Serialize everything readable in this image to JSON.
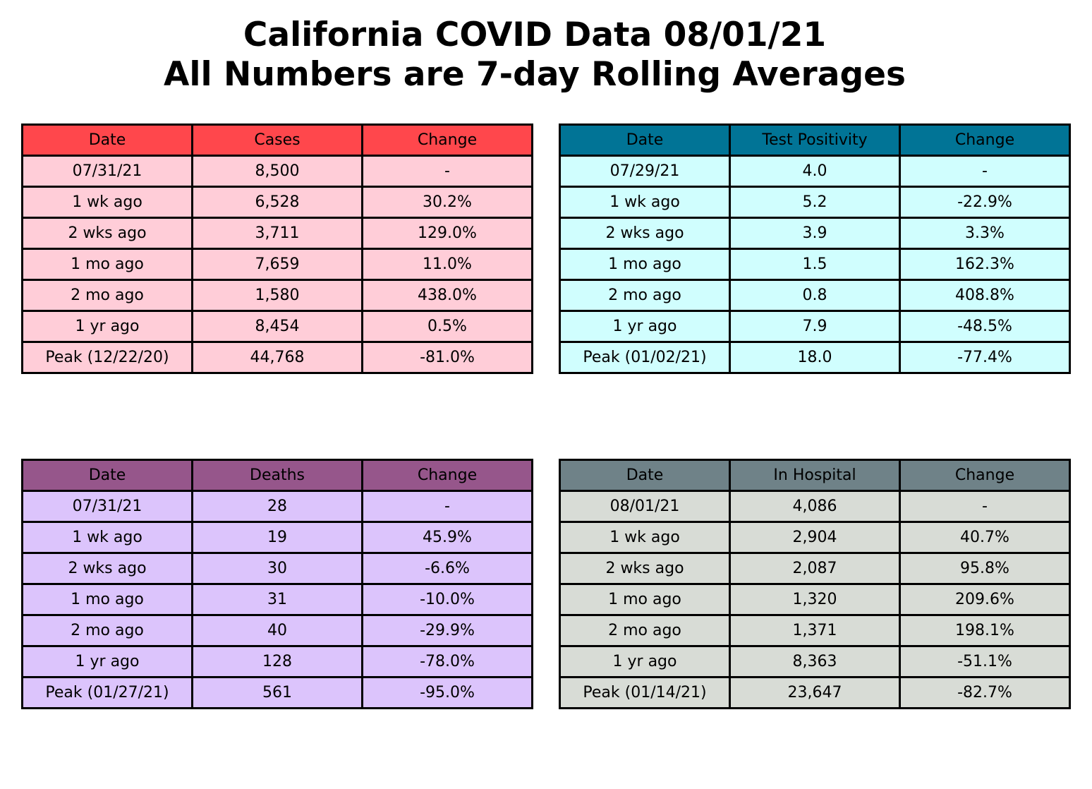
{
  "title": {
    "line1": "California COVID Data 08/01/21",
    "line2": "All Numbers are 7-day Rolling Averages"
  },
  "chart_data": [
    {
      "type": "table",
      "header_color": "#ff474c",
      "cell_color": "#ffcdd8",
      "columns": [
        "Date",
        "Cases",
        "Change"
      ],
      "rows": [
        [
          "07/31/21",
          "8,500",
          "-"
        ],
        [
          "1 wk ago",
          "6,528",
          "30.2%"
        ],
        [
          "2 wks ago",
          "3,711",
          "129.0%"
        ],
        [
          "1 mo ago",
          "7,659",
          "11.0%"
        ],
        [
          "2 mo ago",
          "1,580",
          "438.0%"
        ],
        [
          "1 yr ago",
          "8,454",
          "0.5%"
        ],
        [
          "Peak (12/22/20)",
          "44,768",
          "-81.0%"
        ]
      ]
    },
    {
      "type": "table",
      "header_color": "#017496",
      "cell_color": "#d0fefe",
      "columns": [
        "Date",
        "Test Positivity",
        "Change"
      ],
      "rows": [
        [
          "07/29/21",
          "4.0",
          "-"
        ],
        [
          "1 wk ago",
          "5.2",
          "-22.9%"
        ],
        [
          "2 wks ago",
          "3.9",
          "3.3%"
        ],
        [
          "1 mo ago",
          "1.5",
          "162.3%"
        ],
        [
          "2 mo ago",
          "0.8",
          "408.8%"
        ],
        [
          "1 yr ago",
          "7.9",
          "-48.5%"
        ],
        [
          "Peak (01/02/21)",
          "18.0",
          "-77.4%"
        ]
      ]
    },
    {
      "type": "table",
      "header_color": "#96568b",
      "cell_color": "#dcc4fc",
      "columns": [
        "Date",
        "Deaths",
        "Change"
      ],
      "rows": [
        [
          "07/31/21",
          "28",
          "-"
        ],
        [
          "1 wk ago",
          "19",
          "45.9%"
        ],
        [
          "2 wks ago",
          "30",
          "-6.6%"
        ],
        [
          "1 mo ago",
          "31",
          "-10.0%"
        ],
        [
          "2 mo ago",
          "40",
          "-29.9%"
        ],
        [
          "1 yr ago",
          "128",
          "-78.0%"
        ],
        [
          "Peak (01/27/21)",
          "561",
          "-95.0%"
        ]
      ]
    },
    {
      "type": "table",
      "header_color": "#6f8288",
      "cell_color": "#d8dcd6",
      "columns": [
        "Date",
        "In Hospital",
        "Change"
      ],
      "rows": [
        [
          "08/01/21",
          "4,086",
          "-"
        ],
        [
          "1 wk ago",
          "2,904",
          "40.7%"
        ],
        [
          "2 wks ago",
          "2,087",
          "95.8%"
        ],
        [
          "1 mo ago",
          "1,320",
          "209.6%"
        ],
        [
          "2 mo ago",
          "1,371",
          "198.1%"
        ],
        [
          "1 yr ago",
          "8,363",
          "-51.1%"
        ],
        [
          "Peak (01/14/21)",
          "23,647",
          "-82.7%"
        ]
      ]
    }
  ]
}
